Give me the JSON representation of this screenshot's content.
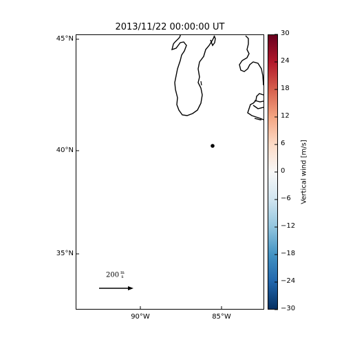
{
  "title": "2013/11/22 00:00:00 UT",
  "map": {
    "lat_ticks": [
      "45°N",
      "40°N",
      "35°N"
    ],
    "lon_ticks": [
      "90°W",
      "85°W"
    ],
    "station_marker": "point"
  },
  "scale_arrow": {
    "value": "200",
    "unit_numerator": "m",
    "unit_denominator": "s"
  },
  "colorbar": {
    "label": "Vertical wind [m/s]",
    "range": [
      -30,
      30
    ],
    "ticks": [
      "30",
      "24",
      "18",
      "12",
      "6",
      "0",
      "−6",
      "−12",
      "−18",
      "−24",
      "−30"
    ],
    "colors": [
      "#67001f",
      "#b2182b",
      "#d6604d",
      "#f4a582",
      "#fddbc7",
      "#f7f7f7",
      "#d1e5f0",
      "#92c5de",
      "#4393c3",
      "#2166ac",
      "#053061"
    ]
  }
}
